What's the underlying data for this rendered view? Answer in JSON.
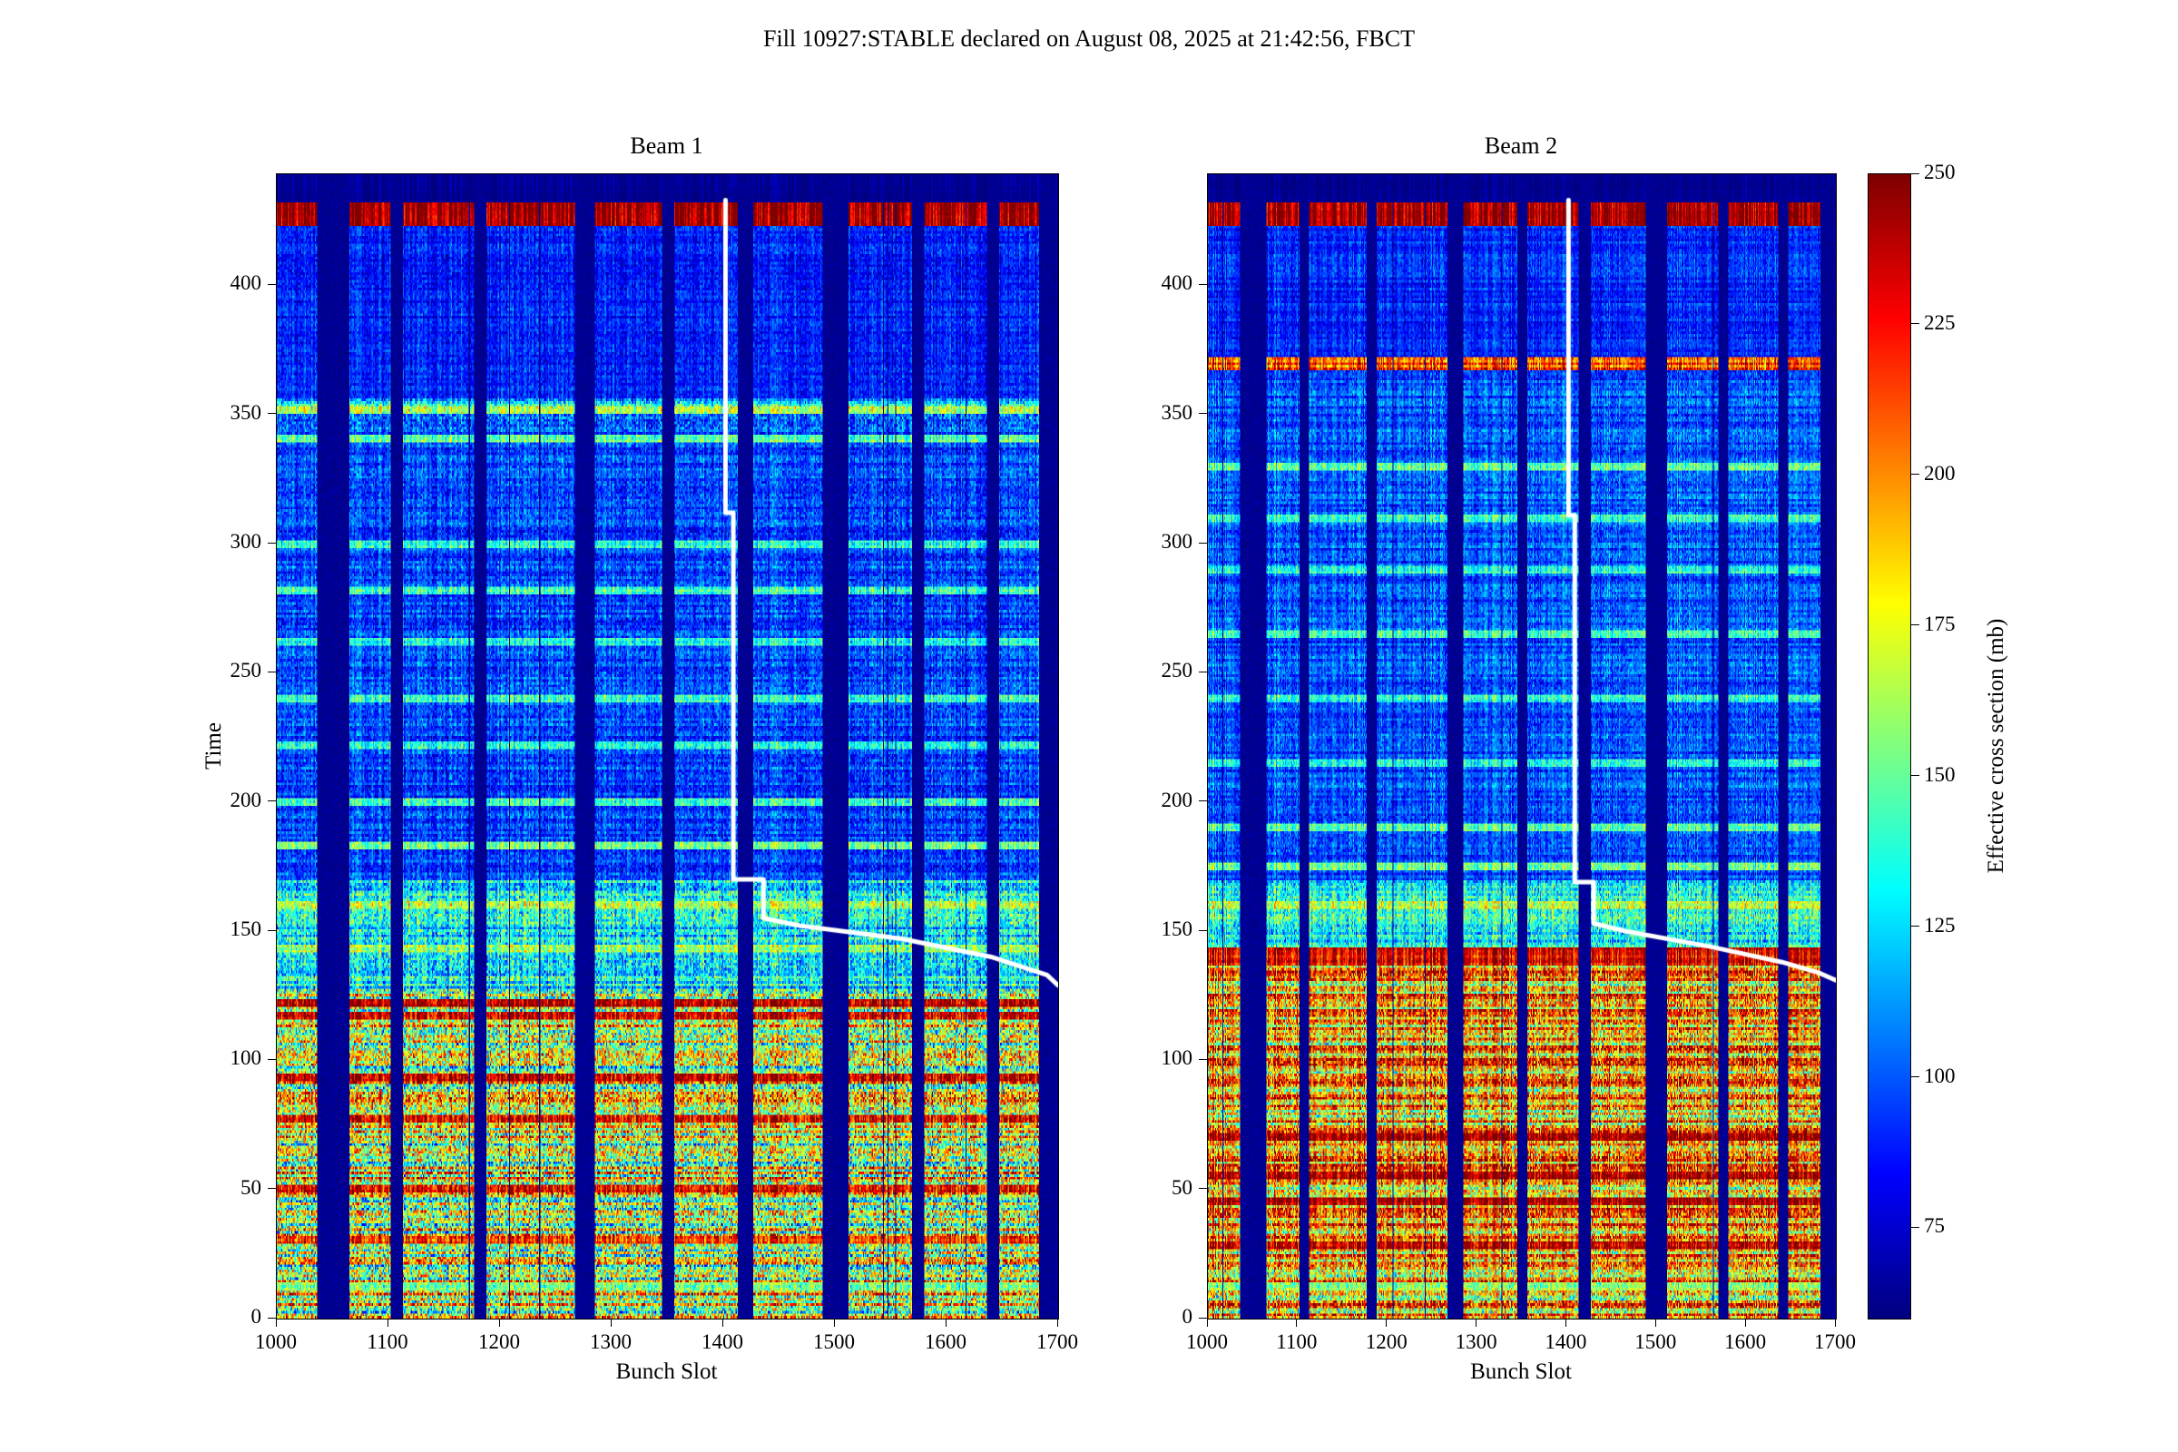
{
  "title": "Fill 10927:STABLE declared on August 08, 2025 at 21:42:56, FBCT",
  "chart_data": {
    "type": "heatmap",
    "colorbar": {
      "label": "Effective cross section (mb)",
      "colormap": "jet",
      "vmin": 60,
      "vmax": 250,
      "ticks": [
        75,
        100,
        125,
        150,
        175,
        200,
        225,
        250
      ]
    },
    "x_range": [
      1000,
      1700
    ],
    "time_range": [
      0,
      443
    ],
    "beam_gaps": [
      [
        1036,
        1064
      ],
      [
        1102,
        1112
      ],
      [
        1177,
        1187
      ],
      [
        1267,
        1284
      ],
      [
        1345,
        1355
      ],
      [
        1413,
        1426
      ],
      [
        1489,
        1511
      ],
      [
        1569,
        1579
      ],
      [
        1636,
        1646
      ],
      [
        1683,
        1700
      ]
    ],
    "panels": [
      {
        "title": "Beam 1",
        "xlabel": "Bunch Slot",
        "ylabel": "Time",
        "xticks": [
          1000,
          1100,
          1200,
          1300,
          1400,
          1500,
          1600,
          1700
        ],
        "yticks": [
          0,
          50,
          100,
          150,
          200,
          250,
          300,
          350,
          400
        ],
        "bands": [
          {
            "t0": 433,
            "t1": 444,
            "base": 62,
            "rowVar": 2,
            "pixVar": 3
          },
          {
            "t0": 424,
            "t1": 433,
            "base": 246,
            "rowVar": 4,
            "pixVar": 8
          },
          {
            "t0": 357,
            "t1": 424,
            "base": 88,
            "rowVar": 6,
            "pixVar": 14
          },
          {
            "t0": 345,
            "t1": 357,
            "base": 118,
            "rowVar": 22,
            "pixVar": 26
          },
          {
            "t0": 170,
            "t1": 345,
            "base": 96,
            "rowVar": 10,
            "pixVar": 18
          },
          {
            "t0": 128,
            "t1": 170,
            "base": 128,
            "rowVar": 18,
            "pixVar": 30
          },
          {
            "t0": 0,
            "t1": 128,
            "base": 168,
            "rowVar": 45,
            "pixVar": 48
          }
        ],
        "streak_rows": [
          {
            "t": 352,
            "v": 168
          },
          {
            "t": 341,
            "v": 150
          },
          {
            "t": 300,
            "v": 136
          },
          {
            "t": 282,
            "v": 142
          },
          {
            "t": 262,
            "v": 136
          },
          {
            "t": 240,
            "v": 142
          },
          {
            "t": 222,
            "v": 133
          },
          {
            "t": 200,
            "v": 140
          },
          {
            "t": 183,
            "v": 148
          },
          {
            "t": 160,
            "v": 162
          },
          {
            "t": 143,
            "v": 158
          },
          {
            "t": 12,
            "v": 150
          }
        ],
        "hot_rows": [
          {
            "t": 122,
            "v": 242
          },
          {
            "t": 117,
            "v": 232
          },
          {
            "t": 93,
            "v": 240
          },
          {
            "t": 77,
            "v": 226
          },
          {
            "t": 50,
            "v": 230
          },
          {
            "t": 30,
            "v": 216
          }
        ],
        "white_line": [
          [
            1402,
            433
          ],
          [
            1402,
            312
          ],
          [
            1409,
            312
          ],
          [
            1409,
            170
          ],
          [
            1436,
            170
          ],
          [
            1436,
            155
          ],
          [
            1470,
            152
          ],
          [
            1560,
            147
          ],
          [
            1640,
            140
          ],
          [
            1690,
            133
          ],
          [
            1700,
            129
          ]
        ]
      },
      {
        "title": "Beam 2",
        "xlabel": "Bunch Slot",
        "xticks": [
          1000,
          1100,
          1200,
          1300,
          1400,
          1500,
          1600,
          1700
        ],
        "yticks": [
          0,
          50,
          100,
          150,
          200,
          250,
          300,
          350,
          400
        ],
        "bands": [
          {
            "t0": 433,
            "t1": 444,
            "base": 62,
            "rowVar": 2,
            "pixVar": 3
          },
          {
            "t0": 424,
            "t1": 433,
            "base": 246,
            "rowVar": 4,
            "pixVar": 8
          },
          {
            "t0": 373,
            "t1": 424,
            "base": 90,
            "rowVar": 7,
            "pixVar": 14
          },
          {
            "t0": 368,
            "t1": 373,
            "base": 212,
            "rowVar": 14,
            "pixVar": 22
          },
          {
            "t0": 170,
            "t1": 368,
            "base": 98,
            "rowVar": 11,
            "pixVar": 18
          },
          {
            "t0": 144,
            "t1": 170,
            "base": 130,
            "rowVar": 18,
            "pixVar": 28
          },
          {
            "t0": 137,
            "t1": 144,
            "base": 232,
            "rowVar": 10,
            "pixVar": 16
          },
          {
            "t0": 0,
            "t1": 137,
            "base": 192,
            "rowVar": 40,
            "pixVar": 44
          }
        ],
        "streak_rows": [
          {
            "t": 330,
            "v": 152
          },
          {
            "t": 310,
            "v": 140
          },
          {
            "t": 290,
            "v": 136
          },
          {
            "t": 265,
            "v": 142
          },
          {
            "t": 240,
            "v": 136
          },
          {
            "t": 215,
            "v": 140
          },
          {
            "t": 190,
            "v": 144
          },
          {
            "t": 175,
            "v": 152
          },
          {
            "t": 160,
            "v": 168
          },
          {
            "t": 12,
            "v": 158
          }
        ],
        "hot_rows": [
          {
            "t": 70,
            "v": 248
          },
          {
            "t": 55,
            "v": 246
          },
          {
            "t": 45,
            "v": 244
          },
          {
            "t": 28,
            "v": 240
          }
        ],
        "white_line": [
          [
            1402,
            433
          ],
          [
            1402,
            311
          ],
          [
            1409,
            311
          ],
          [
            1409,
            169
          ],
          [
            1430,
            169
          ],
          [
            1430,
            153
          ],
          [
            1465,
            150
          ],
          [
            1560,
            144
          ],
          [
            1640,
            138
          ],
          [
            1680,
            134
          ],
          [
            1700,
            131
          ]
        ]
      }
    ]
  }
}
